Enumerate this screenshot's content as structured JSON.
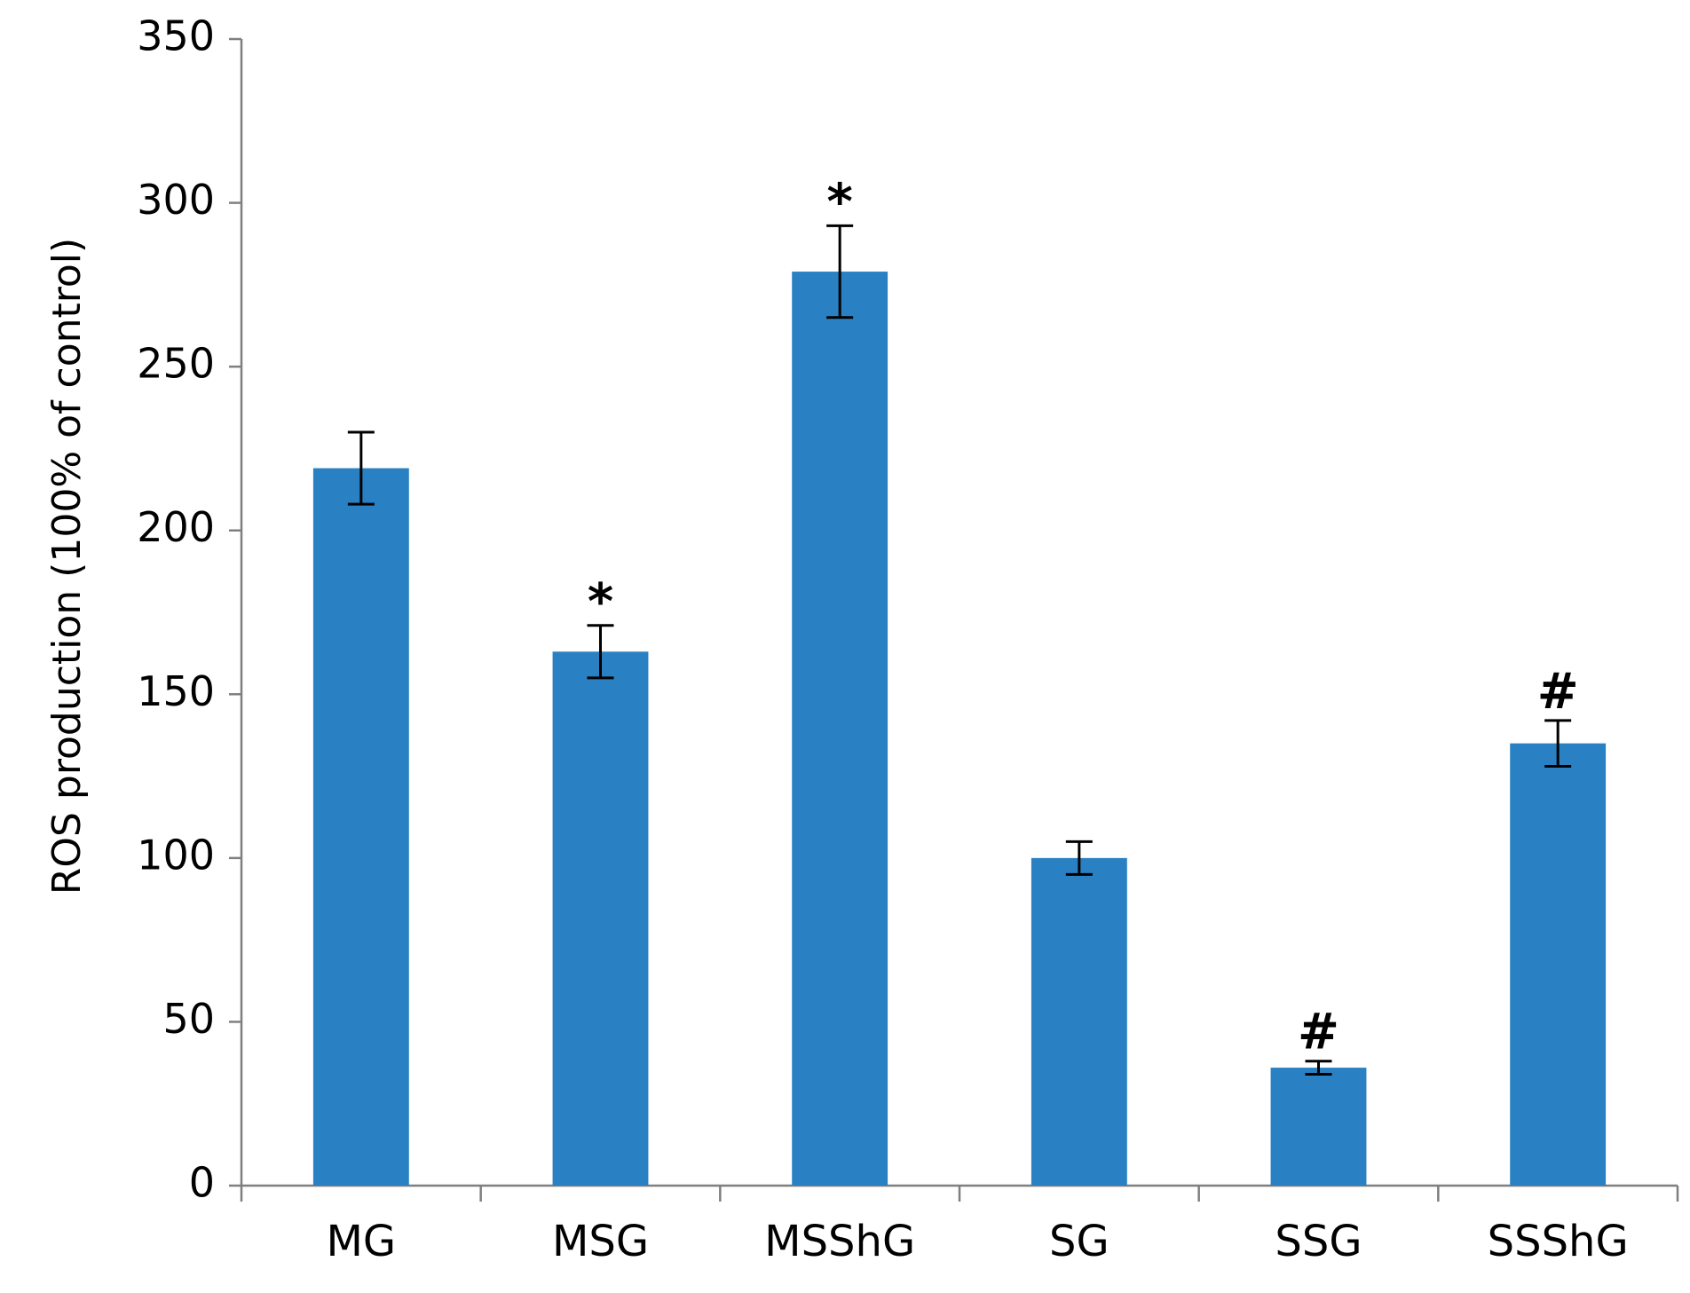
{
  "chart_data": {
    "type": "bar",
    "title": "",
    "xlabel": "",
    "ylabel": "ROS production (100% of control)",
    "ylim": [
      0,
      350
    ],
    "yticks": [
      0,
      50,
      100,
      150,
      200,
      250,
      300,
      350
    ],
    "categories": [
      "MG",
      "MSG",
      "MSShG",
      "SG",
      "SSG",
      "SSShG"
    ],
    "values": [
      219,
      163,
      279,
      100,
      36,
      135
    ],
    "errors": [
      11,
      8,
      14,
      5,
      2,
      7
    ],
    "annotations": [
      "",
      "*",
      "*",
      "",
      "#",
      "#"
    ],
    "bar_color": "#2980c2",
    "grid": false,
    "legend": "none"
  }
}
